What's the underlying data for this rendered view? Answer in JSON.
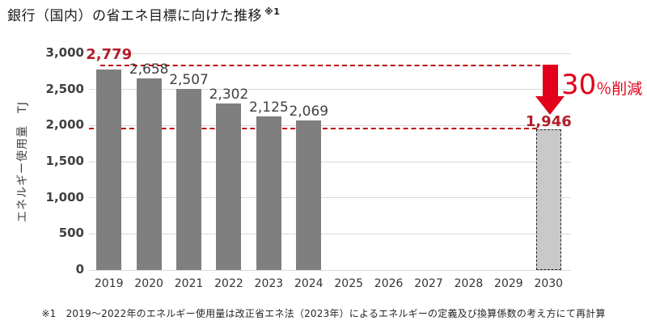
{
  "title": {
    "text": "銀行（国内）の省エネ目標に向けた推移",
    "note_ref": "※1"
  },
  "annotation": {
    "big": "30",
    "small": "％削減"
  },
  "footnote": "※1　2019～2022年のエネルギー使用量は改正省エネ法（2023年）によるエネルギーの定義及び換算係数の考え方にて再計算",
  "colors": {
    "bar": "#7f7f7f",
    "target_bar_fill": "#c9c9c9",
    "target_bar_border": "#262626",
    "dashed_line": "#c00000",
    "highlight_value": "#b01e28",
    "arrow": "#e2001a",
    "annotation": "#e2001a",
    "gridline": "#d9d9d9"
  },
  "chart_data": {
    "type": "bar",
    "title": "銀行（国内）の省エネ目標に向けた推移 ※1",
    "xlabel": "",
    "ylabel": "エネルギー使用量　TJ",
    "ylim": [
      0,
      3000
    ],
    "ytick_step": 500,
    "yticks": [
      "3,000",
      "2,500",
      "2,000",
      "1,500",
      "1,000",
      "500",
      "0"
    ],
    "grid": true,
    "categories": [
      "2019",
      "2020",
      "2021",
      "2022",
      "2023",
      "2024",
      "2025",
      "2026",
      "2027",
      "2028",
      "2029",
      "2030"
    ],
    "values": [
      2779,
      2658,
      2507,
      2302,
      2125,
      2069,
      null,
      null,
      null,
      null,
      null,
      1946
    ],
    "value_labels": [
      "2,779",
      "2,658",
      "2,507",
      "2,302",
      "2,125",
      "2,069",
      "",
      "",
      "",
      "",
      "",
      "1,946"
    ],
    "reduction": {
      "label": "30％削減",
      "from": 2779,
      "to": 1946,
      "from_year": "2019",
      "to_year": "2030"
    },
    "reference_lines": [
      {
        "value": 2779,
        "style": "dashed"
      },
      {
        "value": 1946,
        "style": "dashed"
      }
    ]
  }
}
